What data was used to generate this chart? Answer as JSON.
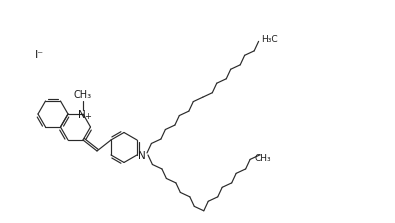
{
  "figsize": [
    3.94,
    2.22
  ],
  "dpi": 100,
  "bg_color": "#ffffff",
  "line_color": "#2a2a2a",
  "lw": 0.85,
  "text_color": "#1a1a1a",
  "ring_r": 15
}
